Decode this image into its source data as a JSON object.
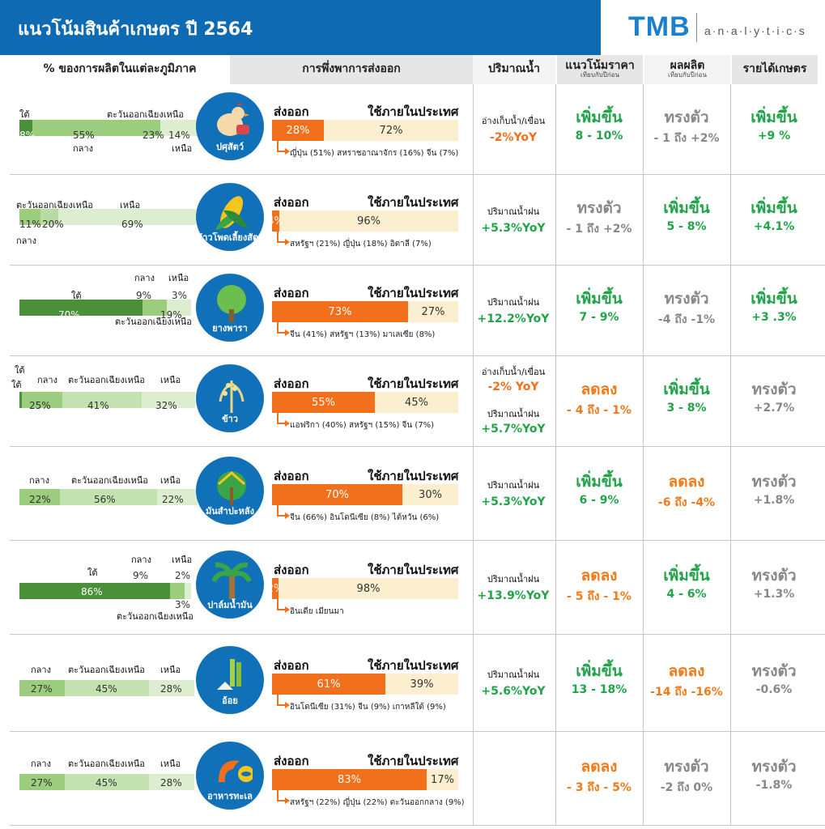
{
  "title": "แนวโน้มสินค้าเกษตร ปี 2564",
  "logo": {
    "main": "TMB",
    "sub": "a·n·a·l·y·t·i·c·s"
  },
  "headers": {
    "production": "% ของการผลิตในแต่ละภูมิภาค",
    "export": "การพึ่งพาการส่งออก",
    "water": "ปริมาณน้ำ",
    "price": "แนวโน้มราคา",
    "price_sub": "เทียบกับปีก่อน",
    "output": "ผลผลิต",
    "output_sub": "เทียบกับปีก่อน",
    "income": "รายได้เกษตร"
  },
  "export_labels": {
    "export": "ส่งออก",
    "domestic": "ใช้ภายในประเทศ"
  },
  "colors": {
    "dark_green": "#4a8f3a",
    "mid_green": "#9ccc7e",
    "light_green": "#d3e8c3",
    "orange": "#f26f1b",
    "cream": "#fcefcf",
    "blue": "#1171b8"
  },
  "chart_data": {
    "type": "table",
    "rows": [
      {
        "product": "ปศุสัตว์",
        "icon": "chicken-icon",
        "regions": [
          {
            "name": "ใต้",
            "value": "8%"
          },
          {
            "name": "กลาง",
            "value": "55%"
          },
          {
            "name": "ตะวันออกเฉียงเหนือ",
            "value": "23%"
          },
          {
            "name": "เหนือ",
            "value": "14%"
          }
        ],
        "export": "28%",
        "domestic": "72%",
        "destinations": "ญี่ปุ่น (51%) สหราชอาณาจักร (16%) จีน (7%)",
        "water": [
          {
            "label": "อ่างเก็บน้ำ/เขื่อน",
            "value": "-2%YoY",
            "color": "orange"
          }
        ],
        "price": {
          "trend": "เพิ่มขึ้น",
          "range": "8 - 10%",
          "color": "green"
        },
        "output": {
          "trend": "ทรงตัว",
          "range": "- 1 ถึง +2%",
          "color": "gray"
        },
        "income": {
          "trend": "เพิ่มขึ้น",
          "range": "+9 %",
          "color": "green"
        }
      },
      {
        "product": "ข้าวโพดเลี้ยงสัตว์",
        "icon": "corn-icon",
        "regions": [
          {
            "name": "กลาง",
            "value": "11%"
          },
          {
            "name": "ตะวันออกเฉียงเหนือ",
            "value": "20%"
          },
          {
            "name": "เหนือ",
            "value": "69%"
          }
        ],
        "export": "4%",
        "domestic": "96%",
        "destinations": "สหรัฐฯ (21%) ญี่ปุ่น (18%) อิตาลี (7%)",
        "water": [
          {
            "label": "ปริมาณน้ำฝน",
            "value": "+5.3%YoY",
            "color": "green"
          }
        ],
        "price": {
          "trend": "ทรงตัว",
          "range": "- 1 ถึง +2%",
          "color": "gray"
        },
        "output": {
          "trend": "เพิ่มขึ้น",
          "range": "5 - 8%",
          "color": "green"
        },
        "income": {
          "trend": "เพิ่มขึ้น",
          "range": "+4.1%",
          "color": "green"
        }
      },
      {
        "product": "ยางพารา",
        "icon": "tree-icon",
        "regions": [
          {
            "name": "ใต้",
            "value": "70%"
          },
          {
            "name": "ตะวันออกเฉียงเหนือ",
            "value": "19%"
          },
          {
            "name": "กลาง",
            "value": "9%"
          },
          {
            "name": "เหนือ",
            "value": "3%"
          }
        ],
        "export": "73%",
        "domestic": "27%",
        "destinations": "จีน (41%) สหรัฐฯ (13%) มาเลเซีย (8%)",
        "water": [
          {
            "label": "ปริมาณน้ำฝน",
            "value": "+12.2%YoY",
            "color": "green"
          }
        ],
        "price": {
          "trend": "เพิ่มขึ้น",
          "range": "7 - 9%",
          "color": "green"
        },
        "output": {
          "trend": "ทรงตัว",
          "range": "-4 ถึง -1%",
          "color": "gray"
        },
        "income": {
          "trend": "เพิ่มขึ้น",
          "range": "+3 .3%",
          "color": "green"
        }
      },
      {
        "product": "ข้าว",
        "icon": "rice-icon",
        "regions": [
          {
            "name": "ใต้",
            "value": "1%"
          },
          {
            "name": "กลาง",
            "value": "25%"
          },
          {
            "name": "ตะวันออกเฉียงเหนือ",
            "value": "41%"
          },
          {
            "name": "เหนือ",
            "value": "32%"
          }
        ],
        "export": "55%",
        "domestic": "45%",
        "destinations": "แอฟริกา (40%) สหรัฐฯ (15%) จีน (7%)",
        "water": [
          {
            "label": "อ่างเก็บน้ำ/เขื่อน",
            "value": "-2% YoY",
            "color": "orange"
          },
          {
            "label": "ปริมาณน้ำฝน",
            "value": "+5.7%YoY",
            "color": "green"
          }
        ],
        "price": {
          "trend": "ลดลง",
          "range": "- 4 ถึง - 1%",
          "color": "orange"
        },
        "output": {
          "trend": "เพิ่มขึ้น",
          "range": "3 - 8%",
          "color": "green"
        },
        "income": {
          "trend": "ทรงตัว",
          "range": "+2.7%",
          "color": "gray"
        }
      },
      {
        "product": "มันสำปะหลัง",
        "icon": "cassava-icon",
        "regions": [
          {
            "name": "กลาง",
            "value": "22%"
          },
          {
            "name": "ตะวันออกเฉียงเหนือ",
            "value": "56%"
          },
          {
            "name": "เหนือ",
            "value": "22%"
          }
        ],
        "export": "70%",
        "domestic": "30%",
        "destinations": "จีน (66%) อินโดนีเซีย (8%) ไต้หวัน (6%)",
        "water": [
          {
            "label": "ปริมาณน้ำฝน",
            "value": "+5.3%YoY",
            "color": "green"
          }
        ],
        "price": {
          "trend": "เพิ่มขึ้น",
          "range": "6 - 9%",
          "color": "green"
        },
        "output": {
          "trend": "ลดลง",
          "range": "-6 ถึง -4%",
          "color": "orange"
        },
        "income": {
          "trend": "ทรงตัว",
          "range": "+1.8%",
          "color": "gray"
        }
      },
      {
        "product": "ปาล์มน้ำมัน",
        "icon": "palm-icon",
        "regions": [
          {
            "name": "ใต้",
            "value": "86%"
          },
          {
            "name": "กลาง",
            "value": "9%"
          },
          {
            "name": "เหนือ",
            "value": "2%"
          },
          {
            "name": "ตะวันออกเฉียงเหนือ",
            "value": "3%"
          }
        ],
        "export": "2%",
        "domestic": "98%",
        "destinations": "อินเดีย เมียนมา",
        "water": [
          {
            "label": "ปริมาณน้ำฝน",
            "value": "+13.9%YoY",
            "color": "green"
          }
        ],
        "price": {
          "trend": "ลดลง",
          "range": "- 5 ถึง - 1%",
          "color": "orange"
        },
        "output": {
          "trend": "เพิ่มขึ้น",
          "range": "4 - 6%",
          "color": "green"
        },
        "income": {
          "trend": "ทรงตัว",
          "range": "+1.3%",
          "color": "gray"
        }
      },
      {
        "product": "อ้อย",
        "icon": "sugarcane-icon",
        "regions": [
          {
            "name": "กลาง",
            "value": "27%"
          },
          {
            "name": "ตะวันออกเฉียงเหนือ",
            "value": "45%"
          },
          {
            "name": "เหนือ",
            "value": "28%"
          }
        ],
        "export": "61%",
        "domestic": "39%",
        "destinations": "อินโดนีเซีย (31%) จีน (9%) เกาหลีใต้ (9%)",
        "water": [
          {
            "label": "ปริมาณน้ำฝน",
            "value": "+5.6%YoY",
            "color": "green"
          }
        ],
        "price": {
          "trend": "เพิ่มขึ้น",
          "range": "13 - 18%",
          "color": "green"
        },
        "output": {
          "trend": "ลดลง",
          "range": "-14 ถึง -16%",
          "color": "orange"
        },
        "income": {
          "trend": "ทรงตัว",
          "range": "-0.6%",
          "color": "gray"
        }
      },
      {
        "product": "อาหารทะเล",
        "icon": "shrimp-icon",
        "regions": [
          {
            "name": "กลาง",
            "value": "27%"
          },
          {
            "name": "ตะวันออกเฉียงเหนือ",
            "value": "45%"
          },
          {
            "name": "เหนือ",
            "value": "28%"
          }
        ],
        "export": "83%",
        "domestic": "17%",
        "destinations": "สหรัฐฯ (22%) ญี่ปุ่น (22%) ตะวันออกกลาง (9%)",
        "water": [],
        "price": {
          "trend": "ลดลง",
          "range": "- 3 ถึง - 5%",
          "color": "orange"
        },
        "output": {
          "trend": "ทรงตัว",
          "range": "-2 ถึง 0%",
          "color": "gray"
        },
        "income": {
          "trend": "ทรงตัว",
          "range": "-1.8%",
          "color": "gray"
        }
      }
    ]
  }
}
